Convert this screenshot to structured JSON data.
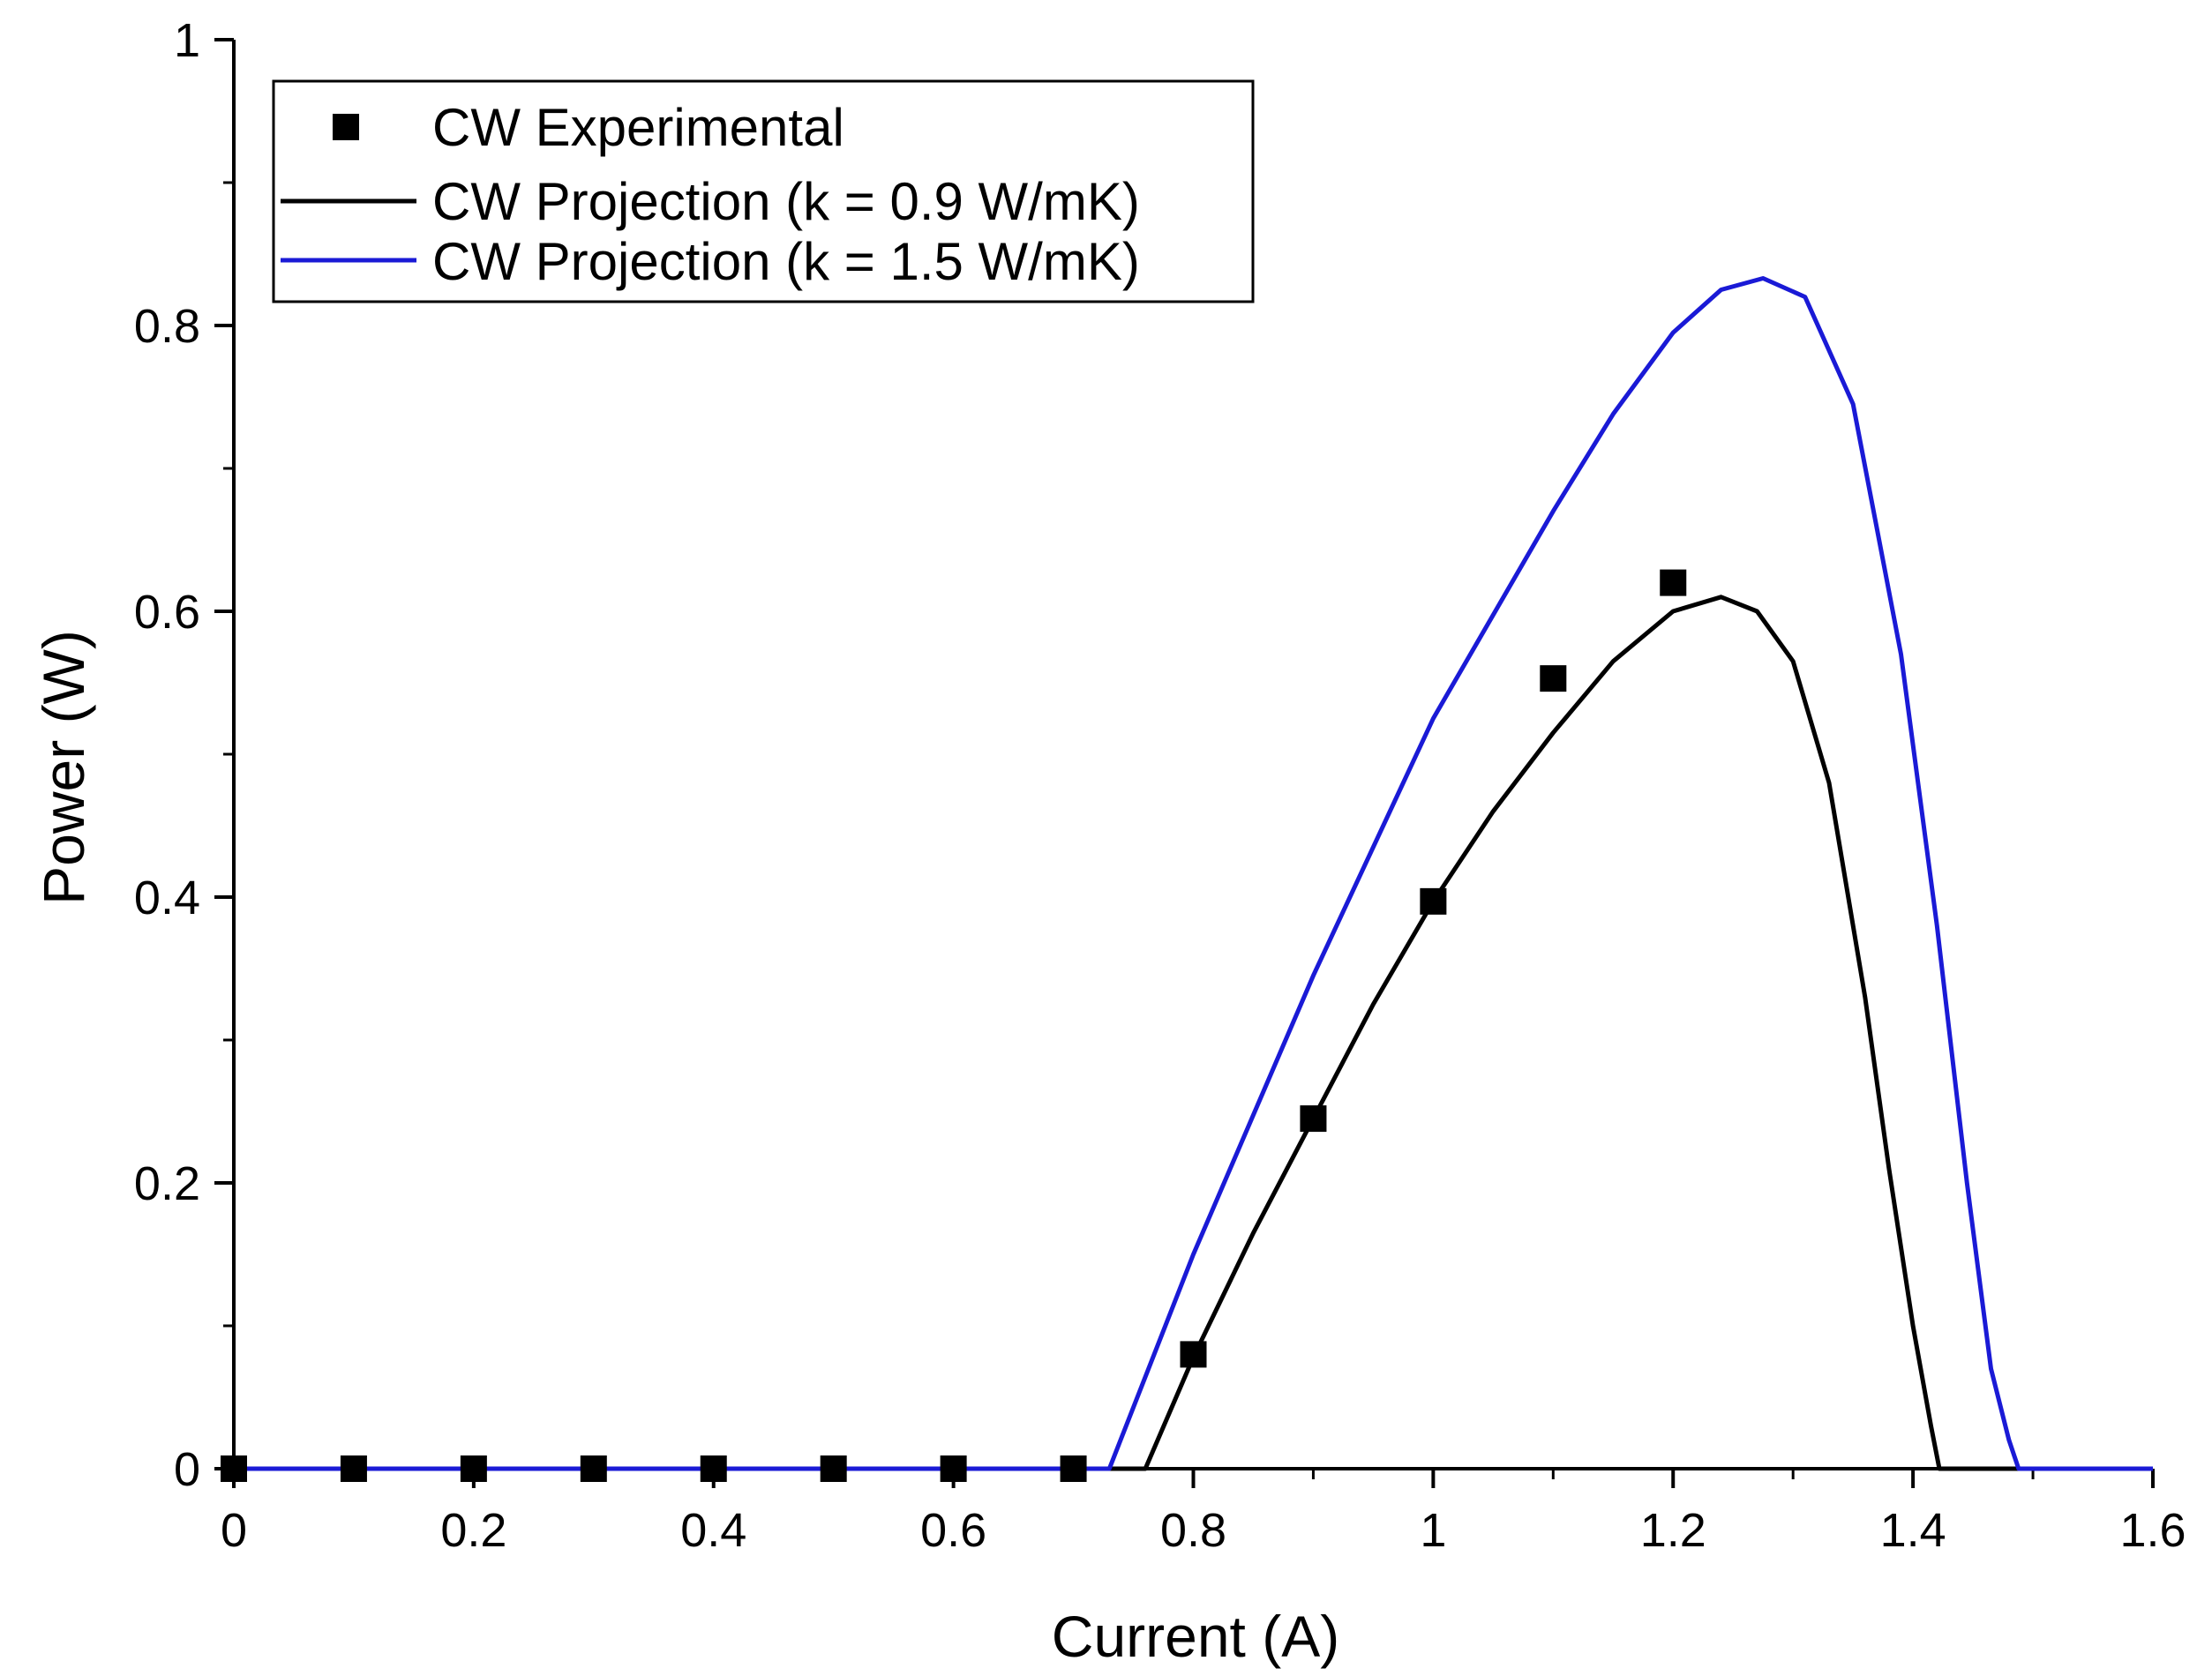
{
  "chart_data": {
    "type": "scatter",
    "title": "",
    "xlabel": "Current (A)",
    "ylabel": "Power (W)",
    "xlim": [
      0,
      1.6
    ],
    "ylim": [
      0,
      1
    ],
    "x_ticks": [
      0,
      0.2,
      0.4,
      0.6,
      0.8,
      1,
      1.2,
      1.4,
      1.6
    ],
    "x_tick_labels": [
      "0",
      "0.2",
      "0.4",
      "0.6",
      "0.8",
      "1",
      "1.2",
      "1.4",
      "1.6"
    ],
    "y_ticks": [
      0,
      0.2,
      0.4,
      0.6,
      0.8,
      1
    ],
    "y_tick_labels": [
      "0",
      "0.2",
      "0.4",
      "0.6",
      "0.8",
      "1"
    ],
    "grid": false,
    "legend_position": "top-left",
    "series": [
      {
        "name": "CW Experimental",
        "kind": "scatter",
        "marker": "square",
        "color": "#000000",
        "x": [
          0,
          0.1,
          0.2,
          0.3,
          0.4,
          0.5,
          0.6,
          0.7,
          0.8,
          0.9,
          1.0,
          1.1,
          1.2
        ],
        "y": [
          0,
          0,
          0,
          0,
          0,
          0,
          0,
          0,
          0.08,
          0.245,
          0.397,
          0.553,
          0.62
        ]
      },
      {
        "name": "CW Projection (k = 0.9 W/mK)",
        "kind": "line",
        "color": "#000000",
        "x": [
          0,
          0.76,
          0.8,
          0.85,
          0.9,
          0.95,
          1.0,
          1.05,
          1.1,
          1.15,
          1.2,
          1.24,
          1.27,
          1.3,
          1.33,
          1.36,
          1.38,
          1.4,
          1.415,
          1.422,
          1.6
        ],
        "y": [
          0,
          0,
          0.078,
          0.165,
          0.245,
          0.325,
          0.397,
          0.46,
          0.515,
          0.565,
          0.6,
          0.61,
          0.6,
          0.565,
          0.48,
          0.33,
          0.21,
          0.1,
          0.03,
          0,
          0
        ]
      },
      {
        "name": "CW Projection (k = 1.5 W/mK)",
        "kind": "line",
        "color": "#1a1ad6",
        "x": [
          0,
          0.73,
          0.8,
          0.9,
          1.0,
          1.1,
          1.15,
          1.2,
          1.24,
          1.275,
          1.31,
          1.35,
          1.39,
          1.42,
          1.445,
          1.465,
          1.48,
          1.488,
          1.6
        ],
        "y": [
          0,
          0,
          0.15,
          0.345,
          0.525,
          0.67,
          0.738,
          0.795,
          0.825,
          0.833,
          0.82,
          0.745,
          0.57,
          0.38,
          0.2,
          0.07,
          0.02,
          0,
          0
        ]
      }
    ]
  }
}
